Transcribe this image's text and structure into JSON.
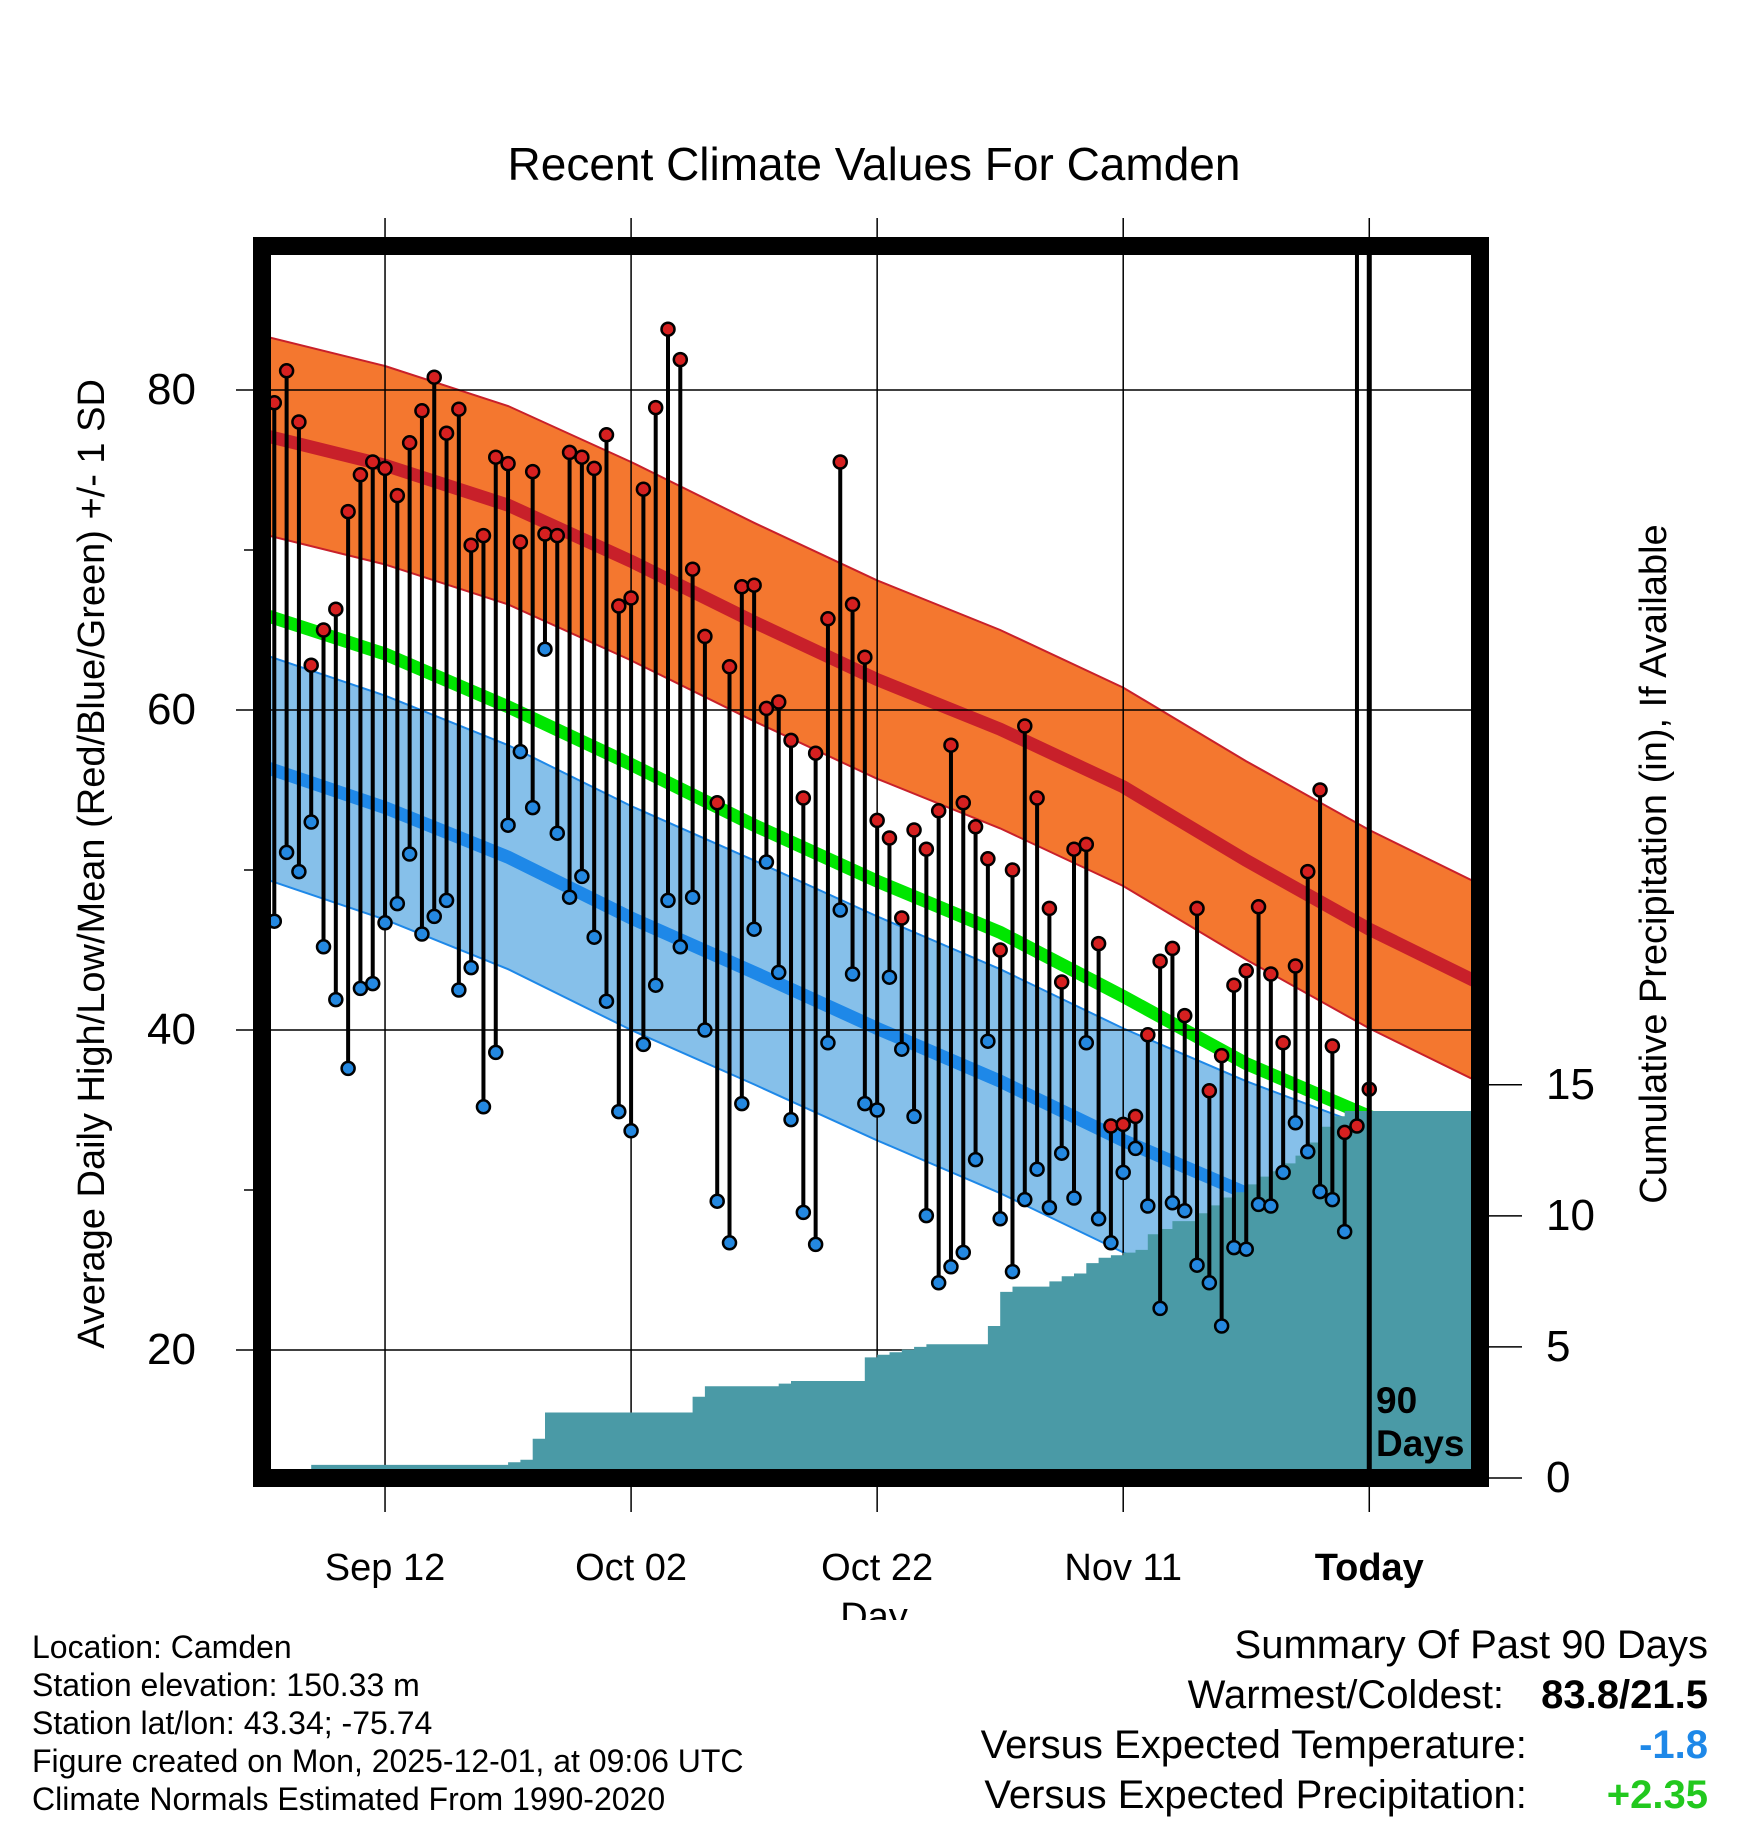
{
  "chart_data": {
    "type": "line",
    "title": "Recent Climate Values For Camden",
    "xlabel": "Day",
    "ylabel": "Average Daily High/Low/Mean (Red/Blue/Green) +/- 1 SD",
    "y2label": "Cumulative Precipitation (in), If Available",
    "ylim": [
      12,
      89
    ],
    "y_ticks": [
      "20",
      "40",
      "60",
      "80"
    ],
    "y2lim": [
      0,
      47
    ],
    "y2_ticks": [
      "0",
      "5",
      "10",
      "15"
    ],
    "xlim": [
      -11.5,
      9
    ],
    "x_ticks": [
      {
        "day": -80,
        "label": "Sep 12"
      },
      {
        "day": -60,
        "label": "Oct 02"
      },
      {
        "day": -40,
        "label": "Oct 22"
      },
      {
        "day": -20,
        "label": "Nov 11"
      },
      {
        "day": 0,
        "label": "Today"
      }
    ],
    "today_label": "90 Days",
    "normals": {
      "days": [
        -90,
        -80,
        -70,
        -60,
        -50,
        -40,
        -30,
        -20,
        -10,
        0,
        9
      ],
      "high_mean": [
        77.2,
        75.3,
        72.8,
        69.3,
        65.5,
        61.9,
        58.8,
        55.2,
        50.6,
        46.3,
        42.9
      ],
      "high_upper": [
        83.4,
        81.5,
        79.0,
        75.5,
        71.7,
        68.1,
        65.0,
        61.4,
        56.8,
        52.5,
        49.1
      ],
      "high_lower": [
        71.0,
        69.1,
        66.6,
        63.1,
        59.3,
        55.7,
        52.6,
        49.0,
        44.4,
        40.1,
        36.7
      ],
      "mean": [
        66.0,
        63.5,
        60.2,
        56.6,
        52.8,
        49.3,
        46.1,
        42.1,
        37.9,
        34.6,
        32.2
      ],
      "low_mean": [
        56.5,
        53.9,
        50.8,
        47.0,
        43.6,
        40.1,
        36.8,
        33.1,
        29.8,
        26.9,
        25.2
      ],
      "low_upper": [
        63.5,
        60.9,
        57.8,
        54.0,
        50.6,
        47.1,
        43.8,
        40.1,
        36.8,
        33.9,
        32.2
      ],
      "low_lower": [
        49.5,
        46.9,
        43.8,
        40.0,
        36.6,
        33.1,
        29.8,
        26.1,
        22.8,
        19.9,
        18.2
      ]
    },
    "series": [
      {
        "name": "Daily High",
        "start_day": -90,
        "values": [
          78,
          79.2,
          81.2,
          78,
          62.8,
          65,
          66.3,
          72.4,
          74.7,
          75.5,
          75.1,
          73.4,
          76.7,
          78.7,
          80.8,
          77.3,
          78.8,
          70.3,
          70.9,
          75.8,
          75.4,
          70.5,
          74.9,
          71,
          70.9,
          76.1,
          75.8,
          75.1,
          77.2,
          66.5,
          67,
          73.8,
          78.9,
          83.8,
          81.9,
          68.8,
          64.6,
          54.2,
          62.7,
          67.7,
          67.8,
          60.1,
          60.5,
          58.1,
          54.5,
          57.3,
          65.7,
          75.5,
          66.6,
          63.3,
          53.1,
          52,
          47,
          52.5,
          51.3,
          53.7,
          57.8,
          54.2,
          52.7,
          50.7,
          45,
          50,
          59,
          54.5,
          47.6,
          43,
          51.3,
          51.6,
          45.4,
          34,
          34.1,
          34.6,
          39.7,
          44.3,
          45.1,
          40.9,
          47.6,
          36.2,
          38.4,
          42.8,
          43.7,
          47.7,
          43.5,
          39.2,
          44,
          49.9,
          55,
          39,
          33.6,
          34,
          36.3
        ]
      },
      {
        "name": "Daily Low",
        "start_day": -90,
        "values": [
          50.5,
          46.8,
          51.1,
          49.9,
          53,
          45.2,
          41.9,
          37.6,
          42.6,
          42.9,
          46.7,
          47.9,
          51,
          46,
          47.1,
          48.1,
          42.5,
          43.9,
          35.2,
          38.6,
          52.8,
          57.4,
          53.9,
          63.8,
          52.3,
          48.3,
          49.6,
          45.8,
          41.8,
          34.9,
          33.7,
          39.1,
          42.8,
          48.1,
          45.2,
          48.3,
          40,
          29.3,
          26.7,
          35.4,
          46.3,
          50.5,
          43.6,
          34.4,
          28.6,
          26.6,
          39.2,
          47.5,
          43.5,
          35.4,
          35,
          43.3,
          38.8,
          34.6,
          28.4,
          24.2,
          25.2,
          26.1,
          31.9,
          39.3,
          28.2,
          24.9,
          29.4,
          31.3,
          28.9,
          32.3,
          29.5,
          39.2,
          28.2,
          26.7,
          31.1,
          32.6,
          29,
          22.6,
          29.2,
          28.7,
          25.3,
          24.2,
          21.5,
          26.4,
          26.3,
          29.1,
          29,
          31.1,
          34.2,
          32.4,
          29.9,
          29.4,
          27.4
        ]
      },
      {
        "name": "Cumulative Precipitation (in)",
        "start_day": -90,
        "values": [
          0,
          0,
          0.3,
          0.3,
          0.5,
          0.5,
          0.5,
          0.5,
          0.5,
          0.5,
          0.5,
          0.5,
          0.5,
          0.5,
          0.5,
          0.5,
          0.5,
          0.5,
          0.5,
          0.5,
          0.6,
          0.7,
          1.5,
          2.5,
          2.5,
          2.5,
          2.5,
          2.5,
          2.5,
          2.5,
          2.5,
          2.5,
          2.5,
          2.5,
          2.5,
          3.1,
          3.5,
          3.5,
          3.5,
          3.5,
          3.5,
          3.5,
          3.6,
          3.7,
          3.7,
          3.7,
          3.7,
          3.7,
          3.7,
          4.6,
          4.7,
          4.8,
          4.9,
          5.0,
          5.1,
          5.1,
          5.1,
          5.1,
          5.1,
          5.8,
          7.1,
          7.3,
          7.3,
          7.3,
          7.5,
          7.7,
          7.8,
          8.2,
          8.4,
          8.5,
          8.6,
          8.7,
          9.3,
          9.5,
          9.8,
          9.8,
          10.1,
          10.4,
          10.7,
          10.9,
          11.2,
          11.5,
          11.7,
          12,
          12.3,
          12.8,
          13.4,
          13.8,
          14,
          14,
          14,
          14,
          14,
          14,
          14,
          14,
          14,
          14,
          14,
          14
        ]
      }
    ]
  },
  "footer": {
    "location": "Location: Camden",
    "elevation": "Station elevation: 150.33 m",
    "latlon": "Station lat/lon: 43.34; -75.74",
    "created": "Figure created on Mon, 2025-12-01, at 09:06 UTC",
    "normals": "Climate Normals Estimated From 1990-2020"
  },
  "summary": {
    "heading": "Summary Of Past 90 Days",
    "warm_cold_label": "Warmest/Coldest:",
    "warm_cold_value": "83.8/21.5",
    "temp_label": "Versus Expected Temperature:",
    "temp_value": "-1.8",
    "precip_label": "Versus Expected Precipitation:",
    "precip_value": "+2.35"
  },
  "colors": {
    "high_band": "#f4772f",
    "high_line": "#c8202a",
    "low_band": "#86c0ea",
    "low_line": "#1e88e8",
    "mean_line": "#00e600",
    "overlap": "#8c1414",
    "precip": "#4a9aa6",
    "high_marker": "#d62020",
    "low_marker": "#2488e0",
    "temp_value": "#1e88e8",
    "precip_value": "#22c81e"
  }
}
